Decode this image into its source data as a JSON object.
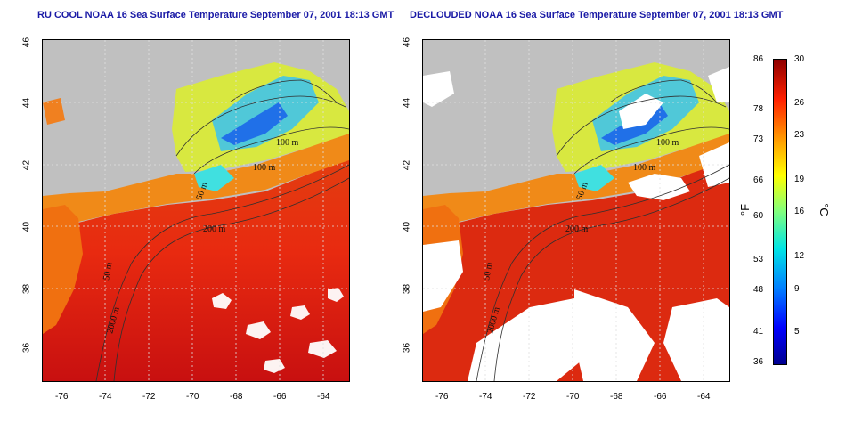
{
  "panels": [
    {
      "title": "RU COOL NOAA 16 Sea Surface Temperature September 07, 2001 18:13 GMT",
      "contour_labels": [
        "100 m",
        "100 m",
        "50 m",
        "200 m",
        "50 m",
        "2000 m"
      ]
    },
    {
      "title": "DECLOUDED NOAA 16 Sea Surface Temperature September 07, 2001 18:13 GMT",
      "contour_labels": [
        "100 m",
        "100 m",
        "50 m",
        "200 m",
        "50 m",
        "2000 m"
      ]
    }
  ],
  "axes": {
    "lat_ticks": [
      "46",
      "44",
      "42",
      "40",
      "38",
      "36"
    ],
    "lon_ticks": [
      "-76",
      "-74",
      "-72",
      "-70",
      "-68",
      "-66",
      "-64"
    ]
  },
  "colorbar": {
    "fahrenheit_label": "°F",
    "celsius_label": "°C",
    "fahrenheit_ticks": [
      "86",
      "78",
      "73",
      "66",
      "60",
      "53",
      "48",
      "41",
      "36"
    ],
    "celsius_ticks": [
      "30",
      "26",
      "23",
      "19",
      "16",
      "12",
      "9",
      "5"
    ]
  },
  "colors": {
    "land": "#c0c0c0",
    "title": "#1a1aa6",
    "cloud": "#ffffff"
  }
}
